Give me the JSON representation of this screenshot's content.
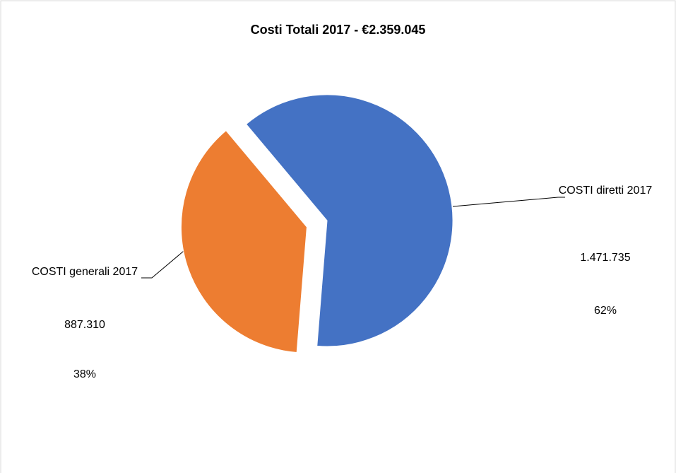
{
  "chart_data": {
    "type": "pie",
    "title": "Costi Totali 2017 -  €2.359.045",
    "categories": [
      "COSTI diretti 2017",
      "COSTI generali 2017"
    ],
    "values": [
      1471735,
      887310
    ],
    "value_labels": [
      "1.471.735",
      "887.310"
    ],
    "percentages": [
      62,
      38
    ],
    "percentage_labels": [
      "62%",
      "38%"
    ],
    "colors": [
      "#4472c4",
      "#ed7d31"
    ]
  }
}
